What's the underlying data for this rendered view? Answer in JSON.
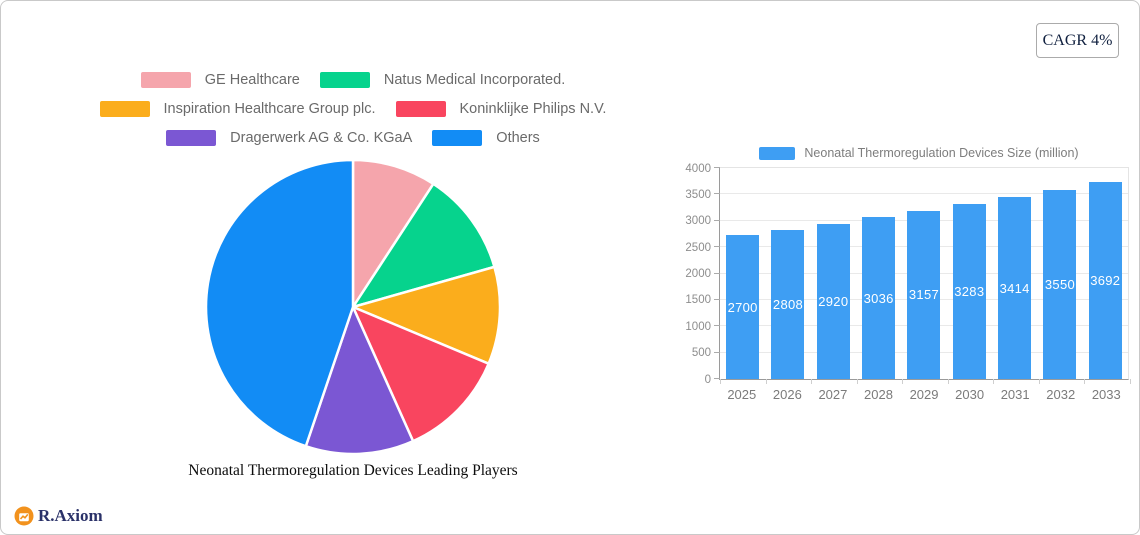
{
  "cagr_badge": {
    "label": "CAGR 4%"
  },
  "brand": {
    "name": "R.Axiom",
    "icon_color": "#F2921D",
    "text_color": "#2A3168"
  },
  "pie_section": {
    "title": "Neonatal Thermoregulation Devices Leading Players"
  },
  "bar_section": {
    "legend_label": "Neonatal Thermoregulation Devices Size (million)"
  },
  "chart_data": [
    {
      "type": "pie",
      "title": "Neonatal Thermoregulation Devices Leading Players",
      "labels": [
        "GE Healthcare",
        "Natus Medical Incorporated.",
        "Inspiration Healthcare Group plc.",
        "Koninklijke Philips N.V.",
        "Dragerwerk AG & Co. KGaA",
        "Others"
      ],
      "values_percent": [
        9.2,
        11.4,
        10.7,
        12.0,
        11.9,
        44.8
      ],
      "colors": [
        "#F5A5AC",
        "#06D38D",
        "#FBAD1C",
        "#F9455F",
        "#7B57D3",
        "#128CF5"
      ],
      "start_angle_deg": 0,
      "direction": "clockwise",
      "legend_position": "top",
      "slice_gap_color": "#ffffff"
    },
    {
      "type": "bar",
      "legend": "Neonatal Thermoregulation Devices Size (million)",
      "categories": [
        "2025",
        "2026",
        "2027",
        "2028",
        "2029",
        "2030",
        "2031",
        "2032",
        "2033"
      ],
      "values": [
        2700,
        2808,
        2920,
        3036,
        3157,
        3283,
        3414,
        3550,
        3692
      ],
      "bar_color": "#3E9EF3",
      "bar_label_color": "#FFFFFF",
      "ylim": [
        0,
        4000
      ],
      "ytick_labels": [
        "0",
        "500",
        "1000",
        "1500",
        "2000",
        "2500",
        "3000",
        "3500",
        "4000"
      ],
      "grid": true,
      "legend_position": "top"
    }
  ]
}
